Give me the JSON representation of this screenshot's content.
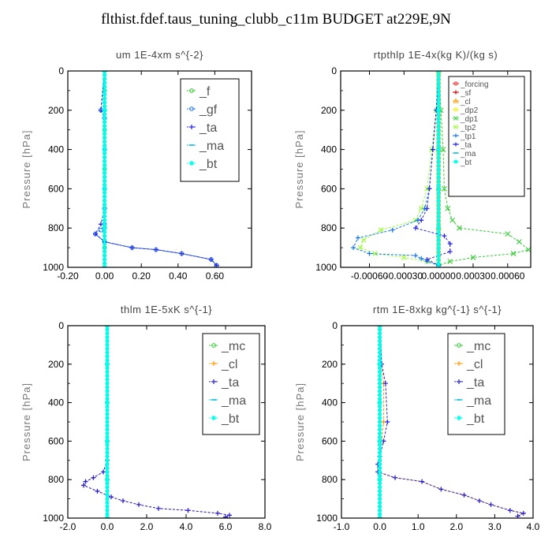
{
  "title": "flthist.fdef.taus_tuning_clubb_c11m  BUDGET at229E,9N",
  "colors": {
    "_f": "#33cc33",
    "_gf": "#2277ee",
    "_ta": "#2222dd",
    "_ma": "#00bbdd",
    "_bt": "#00ffee",
    "_forcing": "#ee2222",
    "_sf": "#cc0000",
    "_cl": "#ff9900",
    "_dp2": "#eeee00",
    "_dp1": "#33cc33",
    "_tp2": "#99ff33",
    "_tp1": "#1177ee",
    "_mc": "#33cc33"
  },
  "chart_data": [
    {
      "type": "line",
      "title": "um   1E-4xm  s^{-2}",
      "ylabel": "Pressure [hPa]",
      "xlim": [
        -0.2,
        0.8
      ],
      "ylim": [
        1000,
        0
      ],
      "xticks": [
        -0.2,
        0.0,
        0.2,
        0.4,
        0.6
      ],
      "xtick_labels": [
        "-0.20",
        "0.00",
        "0.20",
        "0.40",
        "0.60"
      ],
      "yticks": [
        0,
        200,
        400,
        600,
        800,
        1000
      ],
      "ytick_labels": [
        "0",
        "200",
        "400",
        "600",
        "800",
        "1000"
      ],
      "legend_position": "top-right",
      "series": [
        {
          "name": "_f",
          "marker": "circle",
          "x": [
            0,
            0,
            0,
            0,
            0,
            0,
            0,
            0,
            0,
            0,
            0
          ],
          "y": [
            0,
            100,
            200,
            300,
            400,
            500,
            600,
            700,
            800,
            900,
            1000
          ]
        },
        {
          "name": "_gf",
          "marker": "circle",
          "x": [
            0,
            -0.02,
            0,
            0,
            0,
            0,
            0,
            -0.02,
            -0.05,
            0,
            0.15,
            0.28,
            0.42,
            0.58,
            0.61
          ],
          "y": [
            0,
            200,
            240,
            400,
            600,
            700,
            780,
            810,
            830,
            870,
            900,
            910,
            930,
            960,
            990
          ]
        },
        {
          "name": "_ta",
          "marker": "plus",
          "x": [
            0,
            -0.02,
            0,
            0,
            0,
            -0.02,
            -0.05,
            0,
            0.15,
            0.28,
            0.42,
            0.58,
            0.61
          ],
          "y": [
            0,
            200,
            240,
            400,
            700,
            780,
            830,
            870,
            900,
            910,
            930,
            960,
            990
          ]
        },
        {
          "name": "_ma",
          "marker": "dash",
          "x": [
            0,
            0,
            0,
            0,
            0,
            0
          ],
          "y": [
            0,
            200,
            400,
            600,
            800,
            1000
          ]
        },
        {
          "name": "_bt",
          "marker": "star",
          "x": [
            0,
            0,
            0,
            0,
            0,
            0
          ],
          "y": [
            0,
            200,
            400,
            600,
            800,
            1000
          ]
        }
      ]
    },
    {
      "type": "line",
      "title": "rtpthlp   1E-4x(kg K)/(kg s)",
      "ylabel": "Pressure [hPa]",
      "xlim": [
        -0.00085,
        0.0008
      ],
      "ylim": [
        1000,
        0
      ],
      "xticks": [
        -0.0006,
        -0.0003,
        0.0,
        0.0003,
        0.0006
      ],
      "xtick_labels": [
        "-0.00060",
        "-0.00030",
        "0.00000",
        "0.00030",
        "0.00060"
      ],
      "yticks": [
        0,
        200,
        400,
        600,
        800,
        1000
      ],
      "ytick_labels": [
        "0",
        "200",
        "400",
        "600",
        "800",
        "1000"
      ],
      "legend_position": "top-right",
      "series": [
        {
          "name": "_forcing",
          "marker": "circle",
          "x": [
            0,
            0,
            0,
            0,
            0,
            0
          ],
          "y": [
            0,
            200,
            400,
            600,
            800,
            1000
          ]
        },
        {
          "name": "_sf",
          "marker": "plus",
          "x": [
            0,
            0,
            0,
            0,
            0,
            0
          ],
          "y": [
            0,
            200,
            400,
            600,
            800,
            1000
          ]
        },
        {
          "name": "_cl",
          "marker": "triangle",
          "x": [
            0,
            0,
            0,
            0,
            0,
            0
          ],
          "y": [
            0,
            200,
            400,
            600,
            800,
            1000
          ]
        },
        {
          "name": "_dp2",
          "marker": "circle",
          "x": [
            0,
            0,
            0,
            0,
            0,
            0
          ],
          "y": [
            0,
            200,
            400,
            600,
            800,
            1000
          ]
        },
        {
          "name": "_dp1",
          "marker": "cross",
          "x": [
            0,
            2e-05,
            4e-05,
            5e-05,
            8e-05,
            0.00012,
            0.00018,
            0.0006,
            0.0007,
            0.00078,
            0.00065,
            0.0003,
            0.0001,
            0
          ],
          "y": [
            0,
            200,
            400,
            600,
            700,
            760,
            800,
            830,
            870,
            910,
            930,
            950,
            970,
            990
          ]
        },
        {
          "name": "_tp2",
          "marker": "cross",
          "x": [
            0,
            -2e-05,
            -6e-05,
            -0.0001,
            -0.00015,
            -0.0002,
            -0.0005,
            -0.00065,
            -0.00068,
            -0.00055,
            -0.0003,
            -0.0001,
            0
          ],
          "y": [
            0,
            200,
            400,
            600,
            700,
            760,
            810,
            860,
            900,
            930,
            950,
            970,
            990
          ]
        },
        {
          "name": "_tp1",
          "marker": "plus",
          "x": [
            0,
            -2e-05,
            -5e-05,
            -8e-05,
            -0.00012,
            -0.00018,
            -0.0004,
            -0.0007,
            -0.00074,
            -0.0006,
            -0.0002,
            -0.00015,
            -0.0001,
            0
          ],
          "y": [
            0,
            200,
            400,
            600,
            700,
            760,
            810,
            850,
            900,
            930,
            940,
            955,
            970,
            990
          ]
        },
        {
          "name": "_ta",
          "marker": "plus",
          "x": [
            0,
            -2e-05,
            -5e-05,
            -8e-05,
            -0.0001,
            -0.00015,
            -0.0002,
            5e-05,
            0.0001,
            0.0001,
            -0.0001,
            0
          ],
          "y": [
            0,
            200,
            400,
            600,
            700,
            760,
            800,
            840,
            880,
            920,
            960,
            990
          ]
        },
        {
          "name": "_ma",
          "marker": "dash",
          "x": [
            0,
            0,
            0,
            0,
            0,
            0
          ],
          "y": [
            0,
            200,
            400,
            600,
            800,
            1000
          ]
        },
        {
          "name": "_bt",
          "marker": "star",
          "x": [
            0,
            0,
            0,
            0,
            0,
            0
          ],
          "y": [
            0,
            200,
            400,
            600,
            800,
            1000
          ]
        }
      ]
    },
    {
      "type": "line",
      "title": "thlm   1E-5xK  s^{-1}",
      "ylabel": "Pressure [hPa]",
      "xlim": [
        -2.0,
        8.0
      ],
      "ylim": [
        1000,
        0
      ],
      "xticks": [
        -2,
        0,
        2,
        4,
        6,
        8
      ],
      "xtick_labels": [
        "-2.0",
        "0.0",
        "2.0",
        "4.0",
        "6.0",
        "8.0"
      ],
      "yticks": [
        0,
        200,
        400,
        600,
        800,
        1000
      ],
      "ytick_labels": [
        "0",
        "200",
        "400",
        "600",
        "800",
        "1000"
      ],
      "legend_position": "top-right",
      "series": [
        {
          "name": "_mc",
          "marker": "circle",
          "x": [
            0,
            0,
            0,
            0,
            0,
            0
          ],
          "y": [
            0,
            200,
            400,
            600,
            800,
            1000
          ]
        },
        {
          "name": "_cl",
          "marker": "plus",
          "x": [
            0,
            0,
            0,
            0,
            -0.2,
            -0.7,
            -1.1,
            -1.2,
            -0.5,
            0.2,
            0.8,
            1.6,
            2.6,
            4.1,
            5.6,
            6.2,
            6.0
          ],
          "y": [
            0,
            200,
            400,
            700,
            760,
            790,
            810,
            830,
            860,
            890,
            910,
            930,
            950,
            960,
            975,
            985,
            995
          ]
        },
        {
          "name": "_ta",
          "marker": "plus",
          "x": [
            0,
            0,
            0,
            0,
            -0.2,
            -0.7,
            -1.1,
            -1.2,
            -0.5,
            0.2,
            0.8,
            1.6,
            2.6,
            4.1,
            5.6,
            6.2,
            6.0
          ],
          "y": [
            0,
            200,
            400,
            700,
            760,
            790,
            810,
            830,
            860,
            890,
            910,
            930,
            950,
            960,
            975,
            985,
            995
          ]
        },
        {
          "name": "_ma",
          "marker": "dash",
          "x": [
            0,
            0,
            0,
            0,
            0,
            0
          ],
          "y": [
            0,
            200,
            400,
            600,
            800,
            1000
          ]
        },
        {
          "name": "_bt",
          "marker": "star",
          "x": [
            0,
            0,
            0,
            0,
            0,
            0
          ],
          "y": [
            0,
            200,
            400,
            600,
            800,
            1000
          ]
        }
      ]
    },
    {
      "type": "line",
      "title": "rtm   1E-8xkg  kg^{-1}  s^{-1}",
      "ylabel": "Pressure [hPa]",
      "xlim": [
        -1.0,
        4.0
      ],
      "ylim": [
        1000,
        0
      ],
      "xticks": [
        -1,
        0,
        1,
        2,
        3,
        4
      ],
      "xtick_labels": [
        "-1.0",
        "0.0",
        "1.0",
        "2.0",
        "3.0",
        "4.0"
      ],
      "yticks": [
        0,
        200,
        400,
        600,
        800,
        1000
      ],
      "ytick_labels": [
        "0",
        "200",
        "400",
        "600",
        "800",
        "1000"
      ],
      "legend_position": "top-right",
      "series": [
        {
          "name": "_mc",
          "marker": "circle",
          "x": [
            0,
            0,
            0,
            0,
            0,
            0
          ],
          "y": [
            0,
            200,
            400,
            600,
            800,
            1000
          ]
        },
        {
          "name": "_cl",
          "marker": "plus",
          "x": [
            0,
            0.05,
            0.1,
            0.1,
            0.05,
            0,
            -0.05,
            -0.05,
            0.4,
            1.1,
            1.6,
            2.2,
            2.6,
            2.9,
            3.4,
            3.75,
            3.6
          ],
          "y": [
            0,
            200,
            300,
            500,
            600,
            680,
            720,
            760,
            790,
            810,
            850,
            880,
            910,
            930,
            960,
            975,
            990
          ]
        },
        {
          "name": "_ta",
          "marker": "plus",
          "x": [
            0,
            0.05,
            0.15,
            0.2,
            0.1,
            0,
            -0.05,
            -0.05,
            0.4,
            1.1,
            1.6,
            2.2,
            2.6,
            2.9,
            3.4,
            3.75,
            3.6
          ],
          "y": [
            0,
            200,
            300,
            500,
            600,
            680,
            720,
            760,
            790,
            810,
            850,
            880,
            910,
            930,
            960,
            975,
            990
          ]
        },
        {
          "name": "_ma",
          "marker": "dash",
          "x": [
            0,
            0,
            0,
            0,
            0,
            0
          ],
          "y": [
            0,
            200,
            400,
            600,
            800,
            1000
          ]
        },
        {
          "name": "_bt",
          "marker": "star",
          "x": [
            0,
            0,
            0,
            0,
            0,
            0
          ],
          "y": [
            0,
            200,
            400,
            600,
            800,
            1000
          ]
        }
      ]
    }
  ]
}
